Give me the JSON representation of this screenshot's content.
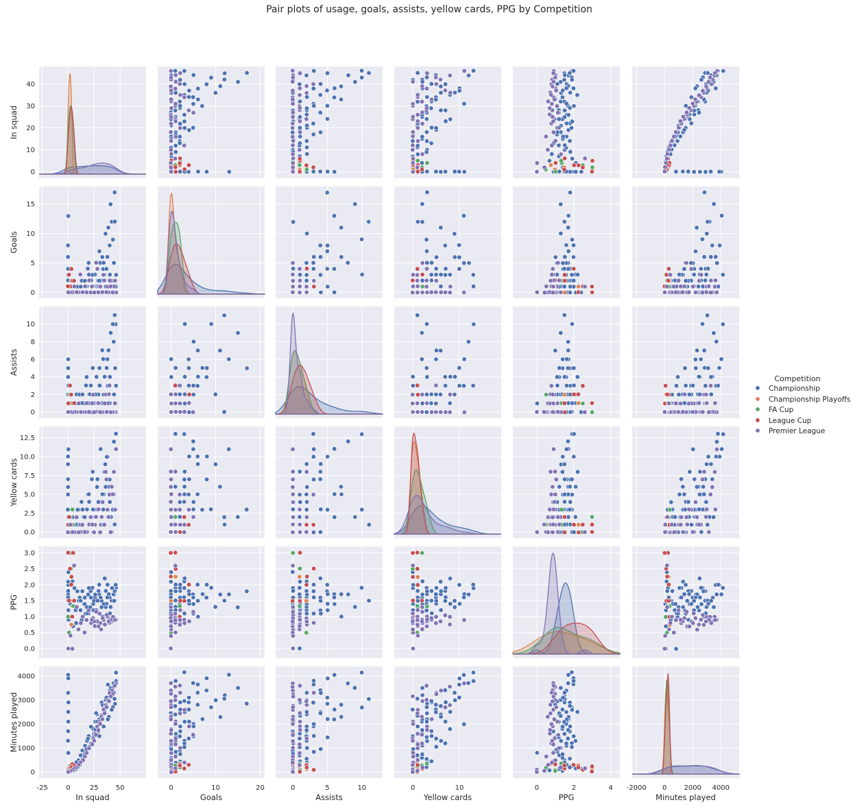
{
  "title": "Pair plots of usage, goals, assists, yellow cards, PPG by Competition",
  "colors": {
    "Championship": "#4c72b0",
    "Championship Playoffs": "#dd8452",
    "FA Cup": "#55a868",
    "League Cup": "#c44e52",
    "Premier League": "#8172b3",
    "background": "#eaeaf2",
    "grid": "#ffffff"
  },
  "chart_data": {
    "type": "scatter",
    "title": "Pair plots of usage, goals, assists, yellow cards, PPG by Competition",
    "variables": [
      "In squad",
      "Goals",
      "Assists",
      "Yellow cards",
      "PPG",
      "Minutes played"
    ],
    "diagonal": "kde",
    "grid": true,
    "legend": {
      "title": "Competition",
      "placement": "right",
      "entries": [
        "Championship",
        "Championship Playoffs",
        "FA Cup",
        "League Cup",
        "Premier League"
      ]
    },
    "axes": {
      "In squad": {
        "ylim": [
          -3,
          48
        ],
        "yticks": [
          "0",
          "10",
          "20",
          "30",
          "40"
        ],
        "xlim": [
          -28,
          75
        ],
        "xticks": [
          "-25",
          "0",
          "25",
          "50"
        ]
      },
      "Goals": {
        "ylim": [
          -1,
          18
        ],
        "yticks": [
          "0",
          "5",
          "10",
          "15"
        ],
        "xlim": [
          -3,
          21
        ],
        "xticks": [
          "0",
          "10",
          "20"
        ]
      },
      "Assists": {
        "ylim": [
          -0.7,
          12
        ],
        "yticks": [
          "0",
          "2",
          "4",
          "6",
          "8",
          "10"
        ],
        "xlim": [
          -2.5,
          13
        ],
        "xticks": [
          "0",
          "5",
          "10"
        ]
      },
      "Yellow cards": {
        "ylim": [
          -0.8,
          14
        ],
        "yticks": [
          "0.0",
          "2.5",
          "5.0",
          "7.5",
          "10.0",
          "12.5"
        ],
        "xlim": [
          -4,
          19
        ],
        "xticks": [
          "0",
          "10"
        ]
      },
      "PPG": {
        "ylim": [
          -0.3,
          3.2
        ],
        "yticks": [
          "0.0",
          "0.5",
          "1.0",
          "1.5",
          "2.0",
          "2.5",
          "3.0"
        ],
        "xlim": [
          -1.3,
          4.5
        ],
        "xticks": [
          "0",
          "2",
          "4"
        ]
      },
      "Minutes played": {
        "ylim": [
          -250,
          4400
        ],
        "yticks": [
          "0",
          "1000",
          "2000",
          "3000",
          "4000"
        ],
        "xlim": [
          -2300,
          5300
        ],
        "xticks": [
          "-2000",
          "0",
          "2000",
          "4000"
        ]
      }
    },
    "series": [
      {
        "name": "Championship",
        "columns": [
          "In squad",
          "Goals",
          "Assists",
          "Yellow cards",
          "PPG",
          "Minutes played"
        ],
        "rows": [
          [
            46,
            3,
            10,
            13,
            1.9,
            4150
          ],
          [
            44,
            5,
            8,
            12,
            1.7,
            3700
          ],
          [
            45,
            17,
            5,
            3,
            1.8,
            2850
          ],
          [
            42,
            12,
            0,
            2,
            1.5,
            3200
          ],
          [
            40,
            8,
            4,
            7,
            1.6,
            3400
          ],
          [
            38,
            6,
            3,
            10,
            2.0,
            3650
          ],
          [
            36,
            10,
            2,
            9,
            1.3,
            3000
          ],
          [
            34,
            4,
            6,
            5,
            1.4,
            2600
          ],
          [
            32,
            2,
            1,
            4,
            1.5,
            2900
          ],
          [
            30,
            7,
            5,
            3,
            1.7,
            2200
          ],
          [
            28,
            1,
            2,
            6,
            1.2,
            2400
          ],
          [
            26,
            3,
            0,
            2,
            1.6,
            2100
          ],
          [
            24,
            0,
            1,
            8,
            1.4,
            1800
          ],
          [
            22,
            2,
            3,
            1,
            1.8,
            1900
          ],
          [
            20,
            5,
            2,
            4,
            1.1,
            1500
          ],
          [
            18,
            1,
            0,
            3,
            1.3,
            1300
          ],
          [
            16,
            0,
            1,
            2,
            1.6,
            1100
          ],
          [
            14,
            2,
            0,
            0,
            1.0,
            900
          ],
          [
            12,
            1,
            1,
            1,
            1.2,
            700
          ],
          [
            10,
            0,
            0,
            3,
            1.5,
            500
          ],
          [
            8,
            0,
            2,
            1,
            0.8,
            400
          ],
          [
            6,
            1,
            0,
            0,
            1.9,
            250
          ],
          [
            4,
            0,
            1,
            2,
            2.1,
            150
          ],
          [
            2,
            0,
            0,
            0,
            1.4,
            60
          ],
          [
            0,
            13,
            6,
            11,
            1.7,
            4050
          ],
          [
            0,
            8,
            5,
            10,
            2.0,
            3900
          ],
          [
            0,
            6,
            4,
            9,
            1.5,
            3300
          ],
          [
            0,
            4,
            3,
            7,
            1.8,
            2900
          ],
          [
            0,
            2,
            2,
            5,
            1.6,
            2500
          ],
          [
            0,
            1,
            1,
            3,
            1.2,
            2100
          ],
          [
            0,
            0,
            0,
            2,
            0.9,
            1700
          ],
          [
            0,
            3,
            2,
            6,
            2.1,
            1300
          ],
          [
            0,
            0,
            1,
            0,
            0.0,
            800
          ],
          [
            45,
            12,
            11,
            1,
            1.5,
            3050
          ],
          [
            43,
            9,
            10,
            3,
            1.9,
            2700
          ],
          [
            41,
            15,
            9,
            2,
            1.3,
            3500
          ],
          [
            39,
            11,
            7,
            6,
            1.7,
            2300
          ],
          [
            37,
            4,
            5,
            10,
            1.4,
            3100
          ],
          [
            35,
            3,
            4,
            8,
            2.2,
            2500
          ],
          [
            33,
            6,
            7,
            5,
            1.0,
            2800
          ],
          [
            31,
            5,
            3,
            11,
            1.6,
            2000
          ],
          [
            29,
            2,
            2,
            4,
            1.8,
            1700
          ],
          [
            27,
            0,
            4,
            3,
            1.2,
            2450
          ],
          [
            25,
            1,
            1,
            2,
            1.5,
            1600
          ],
          [
            23,
            3,
            0,
            7,
            1.9,
            1200
          ],
          [
            21,
            0,
            2,
            1,
            1.3,
            1000
          ],
          [
            19,
            4,
            1,
            5,
            1.7,
            1400
          ],
          [
            17,
            1,
            3,
            0,
            1.1,
            850
          ],
          [
            15,
            0,
            0,
            2,
            1.4,
            600
          ],
          [
            13,
            2,
            1,
            4,
            0.9,
            450
          ],
          [
            11,
            0,
            2,
            1,
            1.6,
            300
          ],
          [
            9,
            1,
            0,
            3,
            1.8,
            200
          ],
          [
            7,
            0,
            1,
            0,
            1.2,
            120
          ],
          [
            5,
            0,
            0,
            1,
            0.7,
            80
          ],
          [
            46,
            1,
            3,
            13,
            2.0,
            3800
          ],
          [
            44,
            0,
            2,
            5,
            1.5,
            3300
          ],
          [
            42,
            2,
            0,
            0,
            1.9,
            2600
          ],
          [
            40,
            3,
            1,
            4,
            1.1,
            2950
          ],
          [
            38,
            0,
            6,
            2,
            1.6,
            2200
          ],
          [
            36,
            1,
            0,
            6,
            1.8,
            2750
          ],
          [
            34,
            5,
            2,
            3,
            1.4,
            1900
          ],
          [
            32,
            0,
            1,
            1,
            1.3,
            2350
          ],
          [
            30,
            2,
            3,
            0,
            2.0,
            1500
          ],
          [
            28,
            4,
            0,
            7,
            1.5,
            2100
          ],
          [
            26,
            0,
            2,
            2,
            1.7,
            1750
          ],
          [
            24,
            1,
            5,
            3,
            1.2,
            1450
          ],
          [
            22,
            0,
            0,
            1,
            1.6,
            1200
          ],
          [
            20,
            3,
            1,
            5,
            1.9,
            1050
          ],
          [
            18,
            0,
            4,
            0,
            1.1,
            950
          ],
          [
            16,
            2,
            0,
            2,
            1.4,
            750
          ],
          [
            14,
            0,
            2,
            3,
            1.8,
            550
          ],
          [
            12,
            1,
            0,
            1,
            1.5,
            400
          ],
          [
            0,
            0,
            0,
            0,
            0.0,
            0
          ],
          [
            0,
            0,
            0,
            0,
            2.4,
            150
          ],
          [
            0,
            0,
            0,
            0,
            1.0,
            100
          ]
        ]
      },
      {
        "name": "Championship Playoffs",
        "columns": [
          "In squad",
          "Goals",
          "Assists",
          "Yellow cards",
          "PPG",
          "Minutes played"
        ],
        "rows": [
          [
            3,
            1,
            1,
            1,
            2.25,
            280
          ],
          [
            1,
            0,
            0,
            0,
            3.0,
            180
          ],
          [
            2,
            0,
            2,
            2,
            1.5,
            120
          ],
          [
            0,
            0,
            0,
            0,
            0.0,
            30
          ],
          [
            3,
            2,
            0,
            1,
            0.75,
            350
          ],
          [
            1,
            0,
            1,
            0,
            1.0,
            90
          ]
        ]
      },
      {
        "name": "FA Cup",
        "columns": [
          "In squad",
          "Goals",
          "Assists",
          "Yellow cards",
          "PPG",
          "Minutes played"
        ],
        "rows": [
          [
            4,
            2,
            1,
            3,
            1.33,
            360
          ],
          [
            2,
            1,
            0,
            2,
            3.0,
            270
          ],
          [
            1,
            0,
            2,
            1,
            0.5,
            180
          ],
          [
            3,
            1,
            1,
            0,
            2.5,
            100
          ],
          [
            0,
            0,
            0,
            0,
            1.0,
            60
          ],
          [
            5,
            2,
            0,
            1,
            1.33,
            200
          ]
        ]
      },
      {
        "name": "League Cup",
        "columns": [
          "In squad",
          "Goals",
          "Assists",
          "Yellow cards",
          "PPG",
          "Minutes played"
        ],
        "rows": [
          [
            3,
            4,
            2,
            1,
            2.0,
            300
          ],
          [
            5,
            0,
            1,
            0,
            3.0,
            240
          ],
          [
            1,
            3,
            0,
            2,
            1.5,
            150
          ],
          [
            2,
            1,
            3,
            1,
            2.5,
            90
          ],
          [
            4,
            2,
            0,
            0,
            1.0,
            330
          ],
          [
            0,
            1,
            1,
            1,
            3.0,
            20
          ],
          [
            3,
            0,
            2,
            0,
            2.25,
            200
          ],
          [
            6,
            2,
            1,
            0,
            1.5,
            270
          ]
        ]
      },
      {
        "name": "Premier League",
        "columns": [
          "In squad",
          "Goals",
          "Assists",
          "Yellow cards",
          "PPG",
          "Minutes played"
        ],
        "rows": [
          [
            46,
            0,
            0,
            11,
            0.9,
            3700
          ],
          [
            44,
            1,
            0,
            8,
            1.0,
            3550
          ],
          [
            42,
            0,
            0,
            6,
            0.85,
            3400
          ],
          [
            40,
            2,
            3,
            5,
            0.8,
            3300
          ],
          [
            38,
            1,
            1,
            3,
            1.0,
            3000
          ],
          [
            36,
            0,
            2,
            8,
            0.75,
            2800
          ],
          [
            34,
            3,
            0,
            1,
            0.9,
            2600
          ],
          [
            32,
            0,
            0,
            2,
            0.6,
            2300
          ],
          [
            30,
            1,
            1,
            0,
            1.1,
            2100
          ],
          [
            28,
            4,
            1,
            3,
            0.85,
            1900
          ],
          [
            26,
            0,
            0,
            1,
            0.7,
            1600
          ],
          [
            24,
            1,
            2,
            0,
            0.95,
            1400
          ],
          [
            22,
            0,
            0,
            2,
            0.8,
            1200
          ],
          [
            20,
            2,
            0,
            1,
            1.2,
            1000
          ],
          [
            18,
            0,
            1,
            0,
            0.9,
            800
          ],
          [
            16,
            1,
            0,
            0,
            0.5,
            650
          ],
          [
            14,
            0,
            0,
            1,
            1.0,
            500
          ],
          [
            12,
            3,
            0,
            0,
            0.8,
            400
          ],
          [
            10,
            0,
            1,
            0,
            0.6,
            300
          ],
          [
            8,
            0,
            0,
            2,
            1.3,
            200
          ],
          [
            6,
            1,
            0,
            0,
            2.6,
            150
          ],
          [
            4,
            0,
            0,
            0,
            0.0,
            100
          ],
          [
            2,
            0,
            0,
            1,
            0.4,
            50
          ],
          [
            0,
            0,
            0,
            0,
            0.0,
            10
          ],
          [
            45,
            2,
            1,
            3,
            0.9,
            3600
          ],
          [
            43,
            0,
            0,
            5,
            1.0,
            3250
          ],
          [
            41,
            1,
            0,
            0,
            0.9,
            3150
          ],
          [
            39,
            0,
            2,
            2,
            0.85,
            2950
          ],
          [
            37,
            0,
            0,
            7,
            1.05,
            2700
          ],
          [
            35,
            2,
            1,
            1,
            0.75,
            2450
          ],
          [
            33,
            0,
            0,
            4,
            0.95,
            2200
          ],
          [
            31,
            1,
            0,
            0,
            0.8,
            2000
          ],
          [
            29,
            0,
            1,
            3,
            0.7,
            1750
          ],
          [
            27,
            5,
            0,
            2,
            1.15,
            1550
          ],
          [
            25,
            0,
            0,
            0,
            0.85,
            1300
          ],
          [
            23,
            1,
            1,
            1,
            0.9,
            1150
          ]
        ]
      }
    ]
  }
}
